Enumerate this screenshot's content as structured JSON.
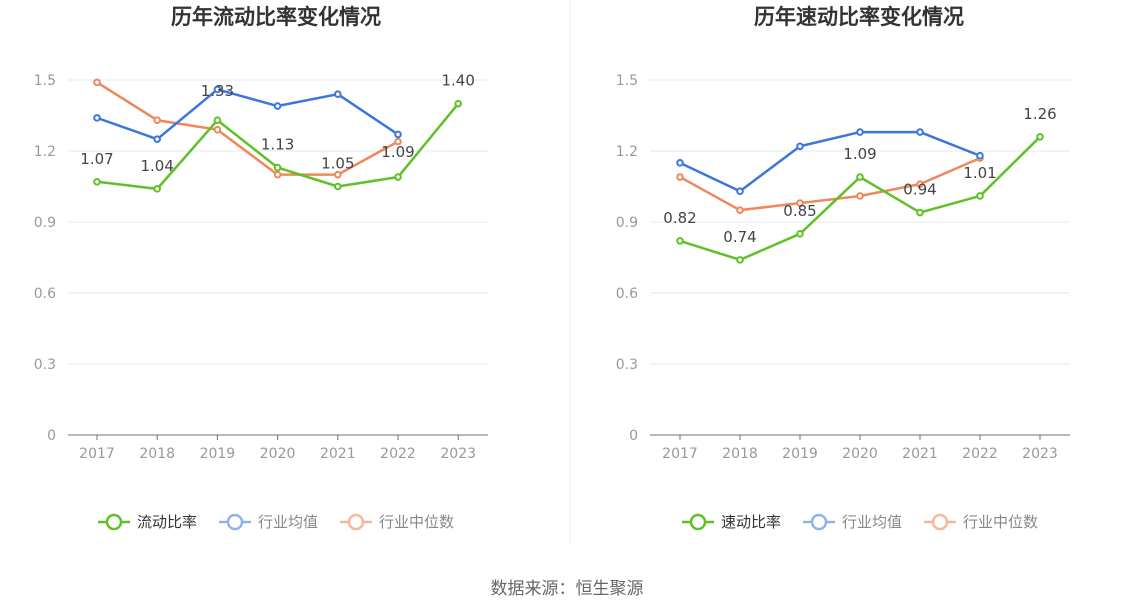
{
  "colors": {
    "green": "#5ec226",
    "blue": "#3b76e0",
    "orange": "#f0875a",
    "divider": "#eeeeee"
  },
  "chart_data": [
    {
      "type": "line",
      "title": "历年流动比率变化情况",
      "categories": [
        "2017",
        "2018",
        "2019",
        "2020",
        "2021",
        "2022",
        "2023"
      ],
      "yticks": [
        "0",
        "0.3",
        "0.6",
        "0.9",
        "1.2",
        "1.5"
      ],
      "ylim": [
        0,
        1.5
      ],
      "series": [
        {
          "name": "流动比率",
          "values": [
            1.07,
            1.04,
            1.33,
            1.13,
            1.05,
            1.09,
            1.4
          ],
          "labels": [
            "1.07",
            "1.04",
            "1.33",
            "1.13",
            "1.05",
            "1.09",
            "1.40"
          ]
        },
        {
          "name": "行业均值",
          "values": [
            1.34,
            1.25,
            1.46,
            1.39,
            1.44,
            1.27,
            null
          ]
        },
        {
          "name": "行业中位数",
          "values": [
            1.49,
            1.33,
            1.29,
            1.1,
            1.1,
            1.24,
            null
          ]
        }
      ]
    },
    {
      "type": "line",
      "title": "历年速动比率变化情况",
      "categories": [
        "2017",
        "2018",
        "2019",
        "2020",
        "2021",
        "2022",
        "2023"
      ],
      "yticks": [
        "0",
        "0.3",
        "0.6",
        "0.9",
        "1.2",
        "1.5"
      ],
      "ylim": [
        0,
        1.5
      ],
      "series": [
        {
          "name": "速动比率",
          "values": [
            0.82,
            0.74,
            0.85,
            1.09,
            0.94,
            1.01,
            1.26
          ],
          "labels": [
            "0.82",
            "0.74",
            "0.85",
            "1.09",
            "0.94",
            "1.01",
            "1.26"
          ]
        },
        {
          "name": "行业均值",
          "values": [
            1.15,
            1.03,
            1.22,
            1.28,
            1.28,
            1.18,
            null
          ]
        },
        {
          "name": "行业中位数",
          "values": [
            1.09,
            0.95,
            0.98,
            1.01,
            1.06,
            1.17,
            null
          ]
        }
      ]
    }
  ],
  "source": "数据来源：恒生聚源"
}
